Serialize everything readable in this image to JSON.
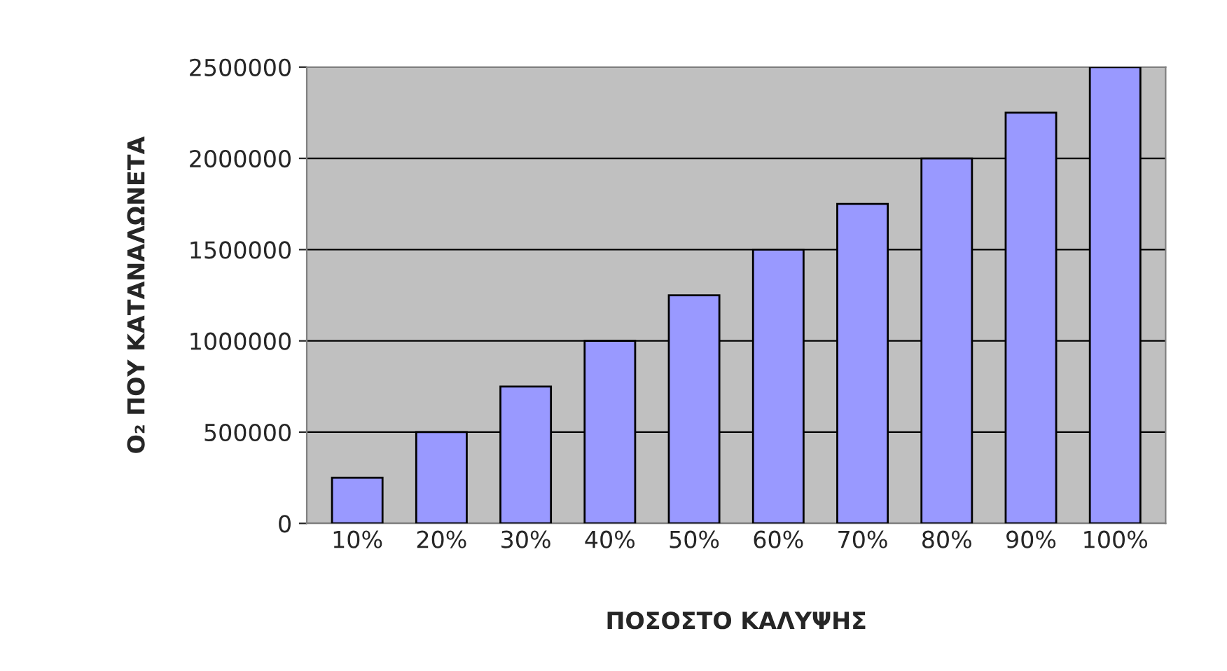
{
  "chart_data": {
    "type": "bar",
    "xlabel": "ΠΟΣΟΣΤΟ ΚΑΛΥΨΗΣ",
    "ylabel": "O₂ ΠΟΥ ΚΑΤΑΝΑΛΩΝΕΤΑ",
    "categories": [
      "10%",
      "20%",
      "30%",
      "40%",
      "50%",
      "60%",
      "70%",
      "80%",
      "90%",
      "100%"
    ],
    "values": [
      250000,
      500000,
      750000,
      1000000,
      1250000,
      1500000,
      1750000,
      2000000,
      2250000,
      2500000
    ],
    "color": "#9999ff",
    "ylim": [
      0,
      2500000
    ],
    "yticks": [
      0,
      500000,
      1000000,
      1500000,
      2000000,
      2500000
    ],
    "grid": "y"
  }
}
